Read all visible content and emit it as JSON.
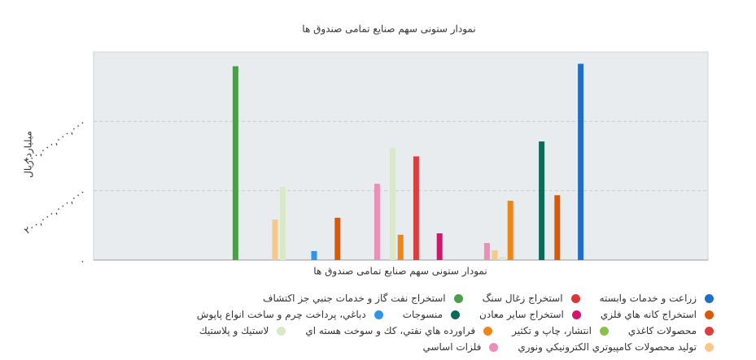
{
  "chart_data": {
    "type": "bar",
    "title": "نمودار ستونی سهم صنایع تمامی صندوق ها",
    "x_label": "نمودار ستونی سهم صنایع تمامی صندوق ها",
    "y_label": "میلیارد ریال",
    "categories": [
      null,
      null,
      null,
      null
    ],
    "ylim": [
      0,
      600000000000
    ],
    "yticks": [
      {
        "value": 0,
        "label": "۰"
      },
      {
        "value": 200000000000,
        "label": "۲۰۰,۰۰۰,۰۰۰,۰۰۰"
      },
      {
        "value": 400000000000,
        "label": "۴۰۰,۰۰۰,۰۰۰,۰۰۰"
      }
    ],
    "grid": true,
    "series": [
      {
        "name": "زراعت و خدمات وابسته",
        "color": "#1f6fc5",
        "values": [
          566000000000,
          null,
          null,
          null
        ]
      },
      {
        "name": "استخراج زغال سنگ",
        "color": "#d63838",
        "values": [
          null,
          null,
          null,
          null
        ]
      },
      {
        "name": "استخراج نفت گاز و خدمات جنبي جز اکتشاف",
        "color": "#4c9e4c",
        "values": [
          null,
          null,
          null,
          559000000000
        ]
      },
      {
        "name": "استخراج کانه هاي فلزي",
        "color": "#d9590b",
        "values": [
          187000000000,
          null,
          122000000000,
          null
        ]
      },
      {
        "name": "استخراج ساير معادن",
        "color": "#d6146c",
        "values": [
          null,
          77000000000,
          null,
          null
        ]
      },
      {
        "name": "منسوجات",
        "color": "#0b6b57",
        "values": [
          342000000000,
          null,
          null,
          null
        ]
      },
      {
        "name": "دباغي، پرداخت چرم و ساخت انواع پاپوش",
        "color": "#2f95e8",
        "values": [
          null,
          null,
          26000000000,
          null
        ]
      },
      {
        "name": "محصولات كاغذي",
        "color": "#d93f3f",
        "values": [
          null,
          299000000000,
          null,
          null
        ]
      },
      {
        "name": "انتشار، چاپ و تکثير",
        "color": "#8bbf4a",
        "values": [
          null,
          null,
          null,
          null
        ]
      },
      {
        "name": "فراورده هاي نفتي، كك و سوخت هسته اي",
        "color": "#ef8417",
        "values": [
          171000000000,
          73000000000,
          null,
          null
        ]
      },
      {
        "name": "لاستيك و پلاستيك",
        "color": "#d9e8c6",
        "values": [
          9000000000,
          323000000000,
          211000000000,
          null
        ]
      },
      {
        "name": "توليد محصولات كامپيوتري الكترونيكي ونوري",
        "color": "#f7c88a",
        "values": [
          28000000000,
          null,
          117000000000,
          null
        ]
      },
      {
        "name": "فلزات اساسي",
        "color": "#ee8db5",
        "values": [
          49000000000,
          220000000000,
          null,
          null
        ]
      }
    ]
  }
}
